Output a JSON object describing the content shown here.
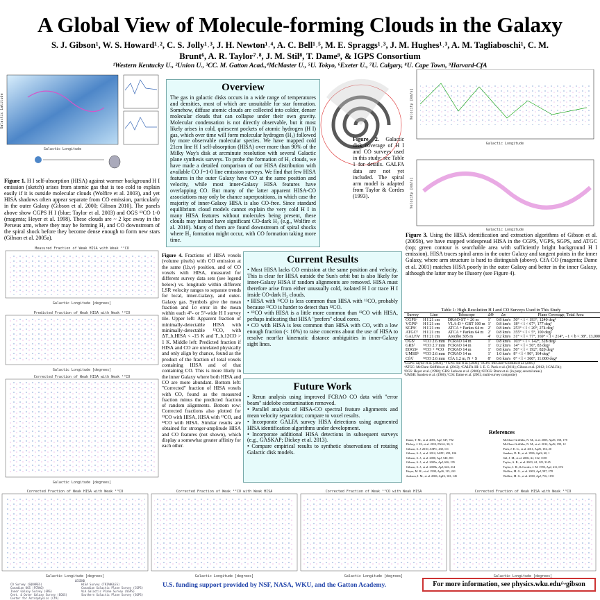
{
  "header": {
    "title": "A Global View of Molecule-forming Clouds in the Galaxy",
    "authors": "S. J. Gibson¹, W. S. Howard¹˒², C. S. Jolly¹˒³, J. H. Newton¹˒⁴, A. C. Bell¹˒⁵, M. E. Spraggs¹˒³, J. M. Hughes¹˒³, A. M. Tagliaboschi¹, C. M. Brunt⁶, A. R. Taylor⁷˒⁸, J. M. Stil⁸, T. Dame⁹, & IGPS Consortium",
    "affiliations": "¹Western Kentucky U., ²Union U., ³CC. M. Gatton Acad.,⁴McMaster U., ⁵U. Tokyo, ⁶Exeter U., ⁷U. Calgary, ⁸U. Cape Town, ⁹Harvard-CfA"
  },
  "figure1": {
    "label": "Figure 1.",
    "caption": "H I self-absorption (HISA) against warmer background H I emission (sketch) arises from atomic gas that is too cold to explain easily if it is outside molecular clouds (Wolfire et al. 2003), and yet HISA shadows often appear separate from CO emission, particularly in the outer Galaxy (Gibson et al. 2000; Gibson 2010). The panels above show CGPS H I (blue; Taylor et al. 2003) and OGS ¹²CO 1-0 (magenta; Heyer et al. 1998). These clouds are ~ 2 kpc away in the Perseus arm, where they may be forming H₂ and CO downstream of the spiral shock before they become dense enough to form new stars (Gibson et al. 2005a).",
    "x_label": "Galactic Longitude",
    "y_label": "Galactic Latitude"
  },
  "overview": {
    "heading": "Overview",
    "text": "The gas in galactic disks occurs in a wide range of temperatures and densities, most of which are unsuitable for star formation. Somehow, diffuse atomic clouds are collected into colder, denser molecular clouds that can collapse under their own gravity. Molecular condensation is not directly observable, but it most likely arises in cold, quiescent pockets of atomic hydrogen (H I) gas, which over time will form molecular hydrogen (H₂) followed by more observable molecular species. We have mapped cold 21cm line H I self-absorption (HISA) over more than 90% of the Milky Way's disk at arcminute resolution with several Galactic plane synthesis surveys. To probe the formation of H₂ clouds, we have made a detailed comparison of our HISA distribution with available CO J=1-0 line emission surveys. We find that few HISA features in the outer Galaxy have CO at the same position and velocity, while most inner-Galaxy HISA features have overlapping CO. But many of the latter apparent HISA-CO associations may only be chance superpositions, in which case the majority of inner-Galaxy HISA is also CO-free. Since standard equilibrium cloud models cannot explain the very cold H I in many HISA features without molecules being present, these clouds may instead have significant CO-dark H₂ (e.g., Wolfire et al. 2010). Many of them are found downstream of spiral shocks where H₂ formation might occur, with CO formation taking more time."
  },
  "figure2": {
    "label": "Figure 2.",
    "caption": "Galactic disk coverage of H I and CO surveys used in this study; see Table 1 for details. GALFA data are not yet included. The spiral arm model is adapted from Taylor & Cordes (1993)."
  },
  "figure3": {
    "label": "Figure 3.",
    "caption": "Using the HISA identification and extraction algorithms of Gibson et al. (2005b), we have mapped widespread HISA in the CGPS, VGPS, SGPS, and ATGC (top; green contour is searchable area with sufficiently bright background H I emission). HISA traces spiral arms in the outer Galaxy and tangent points in the inner Galaxy, where arm structure is hard to distinguish (above). CfA CO (magenta; Dame et al. 2001) matches HISA poorly in the outer Galaxy and better in the inner Galaxy, although the latter may be illusory (see Figure 4).",
    "x_label": "Galactic Longitude",
    "y_label": "Velocity [km/s]"
  },
  "figure4": {
    "label": "Figure 4.",
    "caption": "Fractions of HISA voxels (volume pixels) with CO emission at the same (l,b,v) position, and of CO voxels with HISA, measured for different survey data sets (see legend below) vs. longitude within different LSR velocity ranges to separate trends for local, inner-Galaxy, and outer-Galaxy gas. Symbols give the mean fraction and 1σ error in the mean within each 4°- or 5°-wide H I survey tile. Upper left: Apparent fraction of minimally-detectable HISA with minimally-detectable ¹²CO, with ΔT_b,HISA < -15 K and T_b,12CO > 1 K. Middle left: Predicted fraction if HISA and CO are unrelated physically and only align by chance, found as the product of the fraction of total voxels containing HISA and of that containing CO. This is more likely in the inner Galaxy where both HISA and CO are more abundant. Bottom left: \"Corrected\" fraction of HISA voxels with CO, found as the measured fraction minus the predicted fraction of random alignments. Bottom row: Corrected fractions also plotted for ¹³CO with HISA, HISA with ¹³CO, and ¹³CO with HISA. Similar results are obtained for stronger-amplitude HISA and CO features (not shown), which display a somewhat greater affinity for each other.",
    "panels": [
      "Measured Fraction of Weak HISA with Weak ¹²CO",
      "Predicted Fraction of Weak HISA with Weak ¹²CO",
      "Corrected Fraction of Weak HISA with Weak ¹²CO",
      "Corrected Fraction of Weak HISA with Weak ¹³CO",
      "Corrected Fraction of Weak ¹²CO with Weak HISA",
      "Corrected Fraction of Weak ¹³CO with Weak HISA",
      "Corrected Fraction of Weak HISA with Weak ¹³CO"
    ],
    "x_label": "Galactic Longitude [degrees]",
    "y_label": "Fraction"
  },
  "current_results": {
    "heading": "Current Results",
    "items": [
      "Most HISA lacks CO emission at the same position and velocity. This is clear for HISA outside the Sun's orbit but is also likely for inner-Galaxy HISA if random alignments are removed. HISA must therefore arise from either unusually cold, isolated H I or trace H I inside CO-dark H₂ clouds.",
      "HISA with ¹³CO is less common than HISA with ¹²CO, probably because ¹³CO is harder to detect than ¹²CO.",
      "¹²CO with HISA is a little more common than ¹²CO with HISA, perhaps indicating that HISA \"prefers\" cloud cores.",
      "CO with HISA is less common than HISA with CO, with a low enough fraction (< 10%) to raise concerns about the use of HISA to resolve near/far kinematic distance ambiguities in inner-Galaxy sight lines."
    ]
  },
  "table": {
    "caption": "Table 1: High-Resolution H I and CO Surveys Used in This Study",
    "columns": [
      "Survey",
      "Line",
      "Telescope",
      "ΔΘ",
      "Δv",
      "Plane Coverage, Total Area"
    ],
    "rows": [
      [
        "CGPSᵃ",
        "H I 21 cm",
        "DRAO-ST + 26 m",
        "1′",
        "0.8 km/s",
        "50° < l < 193°, 1240 deg²"
      ],
      [
        "VGPSᵇ",
        "H I 21 cm",
        "VLA-D + GBT 100 m",
        "1′",
        "0.8 km/s",
        "18° < l < 67°, 177 deg²"
      ],
      [
        "SGPSᶜ",
        "H I 21 cm",
        "ATCA + Parkes 64 m",
        "2′",
        "0.8 km/s",
        "253° < l < 20°, 274 deg²"
      ],
      [
        "ATGCᵈ",
        "H I 21 cm",
        "ATCA + Parkes 64 m",
        "2′",
        "0.8 km/s",
        "355° < l < 5°, 100 deg²"
      ],
      [
        "GALFAᵉ",
        "H I 21 cm",
        "Arecibo 305 m",
        "4′",
        "0.2 km/s",
        "31° < l < 77°, 169° < l < 214°, −1 < b < 38°, 13,000 deg²"
      ],
      [
        "OGSᶠ",
        "¹²CO 2.6 mm",
        "FCRAO 14 m",
        "1′",
        "0.8 km/s",
        "103° < l < 142°, 328 deg²"
      ],
      [
        "GRSᶠ",
        "¹³CO 2.7 mm",
        "FCRAO 14 m",
        "1′",
        "0.2 km/s",
        "14° < l < 56°, 83 deg²"
      ],
      [
        "EOGSᵍ",
        "¹²CO + ¹³CO",
        "FCRAO 14 m",
        "1′",
        "0.8 km/s",
        "56° < l < 192°, 820 deg²"
      ],
      [
        "UMSBʰ",
        "¹²CO 2.6 mm",
        "FCRAO 14 m",
        "1′",
        "1.0 km/s",
        "8° < l < 90°, 164 deg²"
      ],
      [
        "CfAⁱ",
        "¹²CO 2.6 mm",
        "CfA 1.2 m, N + S",
        "8′",
        "0.6 km/s",
        "0° < l < 360°, 11,000 deg²"
      ]
    ],
    "notes": [
      "ᵃCGPS: Taylor et al. (2003); ᵇVGPS: Stil et al. (2006); ᶜSGPS: McClure-Griffiths et al. (2005)",
      "ᵈATGC: McClure-Griffiths et al. (2012); ᵉGALFA-HI: J. E. G. Peek et al. (2011); Gibson et al. (2012; I-GALFA);",
      "ᶠOGS: Heyer et al. (1998); ᶠGRS: Jackson et al. (2006); ᵍEOGS: Brunt et al. (in prep; several areas)",
      "ʰUMSB: Sanders et al. (1986); ⁱCfA: Dame et al. (2001; multi-survey composite)"
    ]
  },
  "future_work": {
    "heading": "Future Work",
    "items": [
      "Rerun analysis using improved FCRAO CO data with \"error beam\" sidelobe contamination removed.",
      "Parallel analysis of HISA-CO spectral feature alignments and mean velocity separation; compare to voxel results.",
      "Incorporate GALFA survey HISA detections using augmented HISA identification algorithms under development.",
      "Incorporate additional HISA detections in subsequent surveys (e.g., GASKAP; Dickey et al. 2013).",
      "Compare empirical results to synthetic observations of rotating Galactic disk models."
    ]
  },
  "references": {
    "heading": "References",
    "items": [
      "Dame, T. M., et al. 2001, ApJ, 547, 792",
      "Dickey, J. M., et al. 2013, PASA, 30, 3",
      "Gibson, S. J. 2010, ASPC, 438, 111",
      "Gibson, S. J., et al. 2012, ASPC, 459, 106",
      "Gibson, S. J., et al. 2000, ApJ, 540, 851",
      "Gibson, S. J., et al. 2005a, ApJ, 626, 195",
      "Gibson, S. J., et al. 2005b, ApJ, 626, 214",
      "Heyer, M. H., et al. 1998, ApJS, 115, 241",
      "Jackson, J. M., et al. 2006, ApJS, 163, 145",
      "McClure-Griffiths, N. M., et al. 2005, ApJS, 158, 178",
      "McClure-Griffiths, N. M., et al. 2012, ApJS, 199, 12",
      "Peek, J. E. G., et al. 2011, ApJS, 194, 20",
      "Sanders, D. B., et al. 1986, ApJS, 60, 1",
      "Stil, J. M., et al. 2006, AJ, 132, 1158",
      "Taylor, A. R., et al. 2003, AJ, 125, 3145",
      "Taylor, J. H., & Cordes, J. M. 1993, ApJ, 411, 674",
      "Wolfire, M. G., et al. 2003, ApJ, 587, 278",
      "Wolfire, M. G., et al. 2010, ApJ, 716, 1191"
    ]
  },
  "legend": {
    "heading": "LEGEND",
    "items": [
      "CO Survey (SQUARES)",
      "Canadian OGS (FCRAO)",
      "Inner Galaxy Survey (GRS)",
      "Cent. & Outer Galaxy Survey (EOGS)",
      "Center for Astrophysics (CfA)",
      "HISA Survey (TRIANGLES)",
      "Canadian Galactic Plane Survey (CGPS)",
      "VLA Galactic Plane Survey (VGPS)",
      "Southern Galactic Plane Survey (SGPS)"
    ]
  },
  "footer": {
    "funding": "U.S. funding support provided by NSF, NASA, WKU, and the Gatton Academy.",
    "more_info": "For more information, see physics.wku.edu/~gibson"
  }
}
